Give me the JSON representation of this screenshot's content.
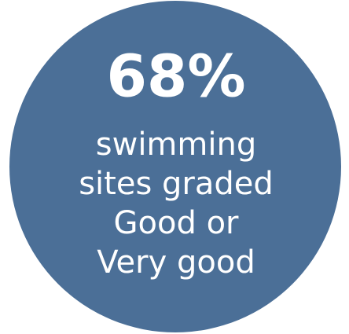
{
  "stat": "68%",
  "caption": [
    "swimming",
    "sites graded",
    "Good or",
    "Very good"
  ]
}
